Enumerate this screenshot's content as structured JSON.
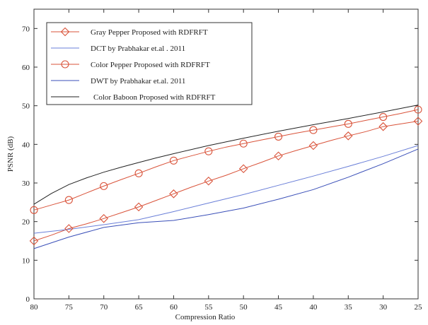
{
  "chart_data": {
    "type": "line",
    "xlabel": "Compression Ratio",
    "ylabel": "PSNR (dB)",
    "xlim": [
      80,
      25
    ],
    "ylim": [
      0,
      75
    ],
    "xticks": [
      80,
      75,
      70,
      65,
      60,
      55,
      50,
      45,
      40,
      35,
      30,
      25
    ],
    "yticks": [
      0,
      10,
      20,
      30,
      40,
      50,
      60,
      70
    ],
    "grid": false,
    "legend_position": "top-left",
    "series": [
      {
        "name": "Gray Pepper Proposed with RDFRFT",
        "color": "#d9533a",
        "marker": "diamond",
        "x": [
          80,
          77.5,
          75,
          72.5,
          70,
          67.5,
          65,
          62.5,
          60,
          57.5,
          55,
          52.5,
          50,
          47.5,
          45,
          42.5,
          40,
          37.5,
          35,
          32.5,
          30,
          27.5,
          25
        ],
        "y": [
          15,
          16.5,
          18.2,
          19.4,
          20.8,
          22.3,
          23.8,
          25.5,
          27.2,
          28.9,
          30.5,
          32.0,
          33.7,
          35.3,
          37.0,
          38.4,
          39.7,
          41.0,
          42.2,
          43.3,
          44.6,
          45.3,
          46.0
        ],
        "marker_x": [
          80,
          75,
          70,
          65,
          60,
          55,
          50,
          45,
          40,
          35,
          30,
          25
        ]
      },
      {
        "name": "DCT by Prabhakar et.al . 2011",
        "color": "#6a7fd8",
        "marker": "none",
        "x": [
          80,
          75,
          70,
          65,
          60,
          55,
          50,
          45,
          40,
          35,
          30,
          25
        ],
        "y": [
          17.0,
          18.0,
          19.2,
          20.5,
          22.6,
          24.8,
          27.0,
          29.4,
          31.8,
          34.3,
          36.9,
          39.7
        ]
      },
      {
        "name": "Color Pepper Proposed with RDFRFT",
        "color": "#d9533a",
        "marker": "circle",
        "x": [
          80,
          77.5,
          75,
          72.5,
          70,
          67.5,
          65,
          62.5,
          60,
          57.5,
          55,
          52.5,
          50,
          47.5,
          45,
          42.5,
          40,
          37.5,
          35,
          32.5,
          30,
          27.5,
          25
        ],
        "y": [
          23.0,
          24.3,
          25.6,
          27.4,
          29.2,
          30.9,
          32.5,
          34.2,
          35.8,
          37.0,
          38.2,
          39.3,
          40.2,
          41.1,
          42.0,
          42.9,
          43.7,
          44.5,
          45.3,
          46.2,
          47.1,
          48.0,
          49.0
        ],
        "marker_x": [
          80,
          75,
          70,
          65,
          60,
          55,
          50,
          45,
          40,
          35,
          30,
          25
        ]
      },
      {
        "name": "DWT by Prabhakar et.al. 2011",
        "color": "#3a4fb8",
        "marker": "none",
        "x": [
          80,
          75,
          70,
          65,
          60,
          55,
          50,
          45,
          40,
          35,
          30,
          25
        ],
        "y": [
          13.0,
          16.0,
          18.5,
          19.7,
          20.3,
          21.8,
          23.5,
          25.8,
          28.3,
          31.5,
          35.0,
          38.8
        ]
      },
      {
        "name": "Color Baboon  Proposed with RDFRFT",
        "color": "#222222",
        "marker": "none",
        "x": [
          80,
          77.5,
          75,
          72.5,
          70,
          67.5,
          65,
          62.5,
          60,
          55,
          50,
          45,
          40,
          35,
          30,
          25
        ],
        "y": [
          24.5,
          27.3,
          29.6,
          31.3,
          32.8,
          34.1,
          35.3,
          36.5,
          37.6,
          39.7,
          41.6,
          43.4,
          45.1,
          46.7,
          48.4,
          50.2
        ]
      }
    ]
  }
}
